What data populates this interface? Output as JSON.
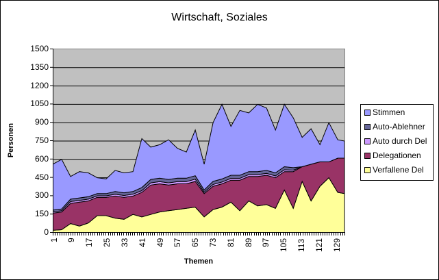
{
  "title": "Wirtschaft, Soziales",
  "chart_data": {
    "type": "area",
    "stacked": true,
    "title": "Wirtschaft, Soziales",
    "xlabel": "Themen",
    "ylabel": "Personen",
    "ylim": [
      0,
      1500
    ],
    "y_ticks": [
      0,
      150,
      300,
      450,
      600,
      750,
      900,
      1050,
      1200,
      1350,
      1500
    ],
    "x_range": [
      1,
      132
    ],
    "x_tick_labels": [
      "1",
      "9",
      "17",
      "25",
      "33",
      "41",
      "49",
      "57",
      "65",
      "73",
      "81",
      "89",
      "97",
      "105",
      "113",
      "121",
      "129"
    ],
    "grid": true,
    "legend_position": "right",
    "x": [
      1,
      5,
      9,
      13,
      17,
      21,
      25,
      29,
      33,
      37,
      41,
      45,
      49,
      53,
      57,
      61,
      65,
      69,
      73,
      77,
      81,
      85,
      89,
      93,
      97,
      101,
      105,
      109,
      113,
      117,
      121,
      125,
      129,
      132
    ],
    "series": [
      {
        "name": "Verfallene Del",
        "color": "#ffff99",
        "values": [
          20,
          25,
          75,
          55,
          80,
          140,
          140,
          120,
          110,
          150,
          130,
          150,
          170,
          180,
          190,
          200,
          210,
          130,
          190,
          210,
          250,
          180,
          260,
          220,
          230,
          200,
          350,
          200,
          420,
          260,
          380,
          450,
          330,
          320
        ]
      },
      {
        "name": "Delegationen",
        "color": "#993366",
        "values": [
          140,
          145,
          165,
          195,
          180,
          150,
          150,
          180,
          180,
          150,
          200,
          240,
          230,
          210,
          210,
          200,
          210,
          190,
          190,
          190,
          180,
          250,
          200,
          240,
          240,
          250,
          150,
          300,
          120,
          300,
          200,
          130,
          280,
          290
        ]
      },
      {
        "name": "Auto durch Del",
        "color": "#cc99ff",
        "values": [
          10,
          10,
          15,
          15,
          15,
          12,
          12,
          15,
          15,
          15,
          15,
          18,
          18,
          18,
          18,
          18,
          18,
          12,
          15,
          15,
          15,
          15,
          15,
          15,
          15,
          15,
          15,
          12,
          0,
          0,
          0,
          0,
          0,
          0
        ]
      },
      {
        "name": "Auto-Ablehner",
        "color": "#666699",
        "values": [
          15,
          15,
          20,
          20,
          20,
          18,
          18,
          22,
          22,
          22,
          25,
          28,
          28,
          28,
          28,
          28,
          28,
          18,
          25,
          25,
          25,
          25,
          25,
          25,
          25,
          25,
          25,
          20,
          0,
          0,
          0,
          0,
          0,
          0
        ]
      },
      {
        "name": "Stimmen",
        "color": "#9999ff",
        "values": [
          375,
          405,
          185,
          215,
          195,
          130,
          120,
          173,
          163,
          163,
          400,
          264,
          274,
          324,
          244,
          214,
          374,
          210,
          480,
          610,
          400,
          530,
          480,
          550,
          510,
          350,
          510,
          408,
          240,
          290,
          140,
          320,
          150,
          140
        ]
      }
    ]
  },
  "legend": {
    "items": [
      {
        "label": "Stimmen",
        "color": "#9999ff"
      },
      {
        "label": "Auto-Ablehner",
        "color": "#666699"
      },
      {
        "label": "Auto durch Del",
        "color": "#cc99ff"
      },
      {
        "label": "Delegationen",
        "color": "#993366"
      },
      {
        "label": "Verfallene Del",
        "color": "#ffff99"
      }
    ]
  },
  "axes": {
    "xlabel": "Themen",
    "ylabel": "Personen"
  }
}
